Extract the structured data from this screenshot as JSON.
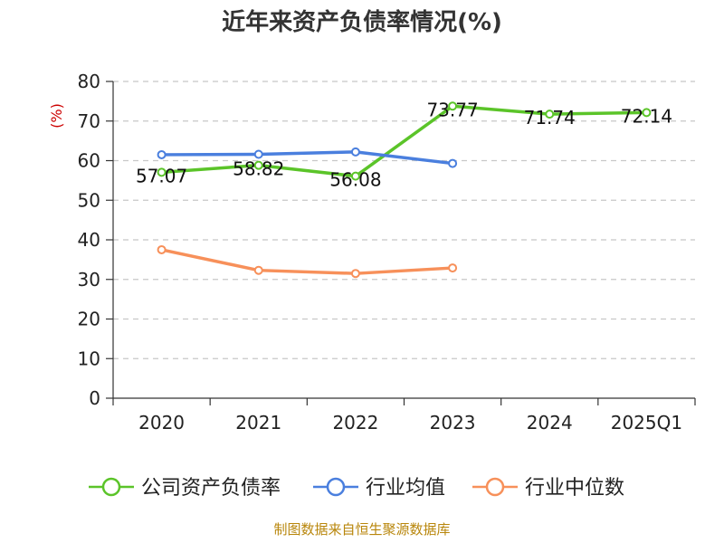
{
  "chart_data": {
    "type": "line",
    "title": "近年来资产负债率情况(%)",
    "ylabel": "(%)",
    "ylim": [
      0,
      80
    ],
    "yticks": [
      0,
      10,
      20,
      30,
      40,
      50,
      60,
      70,
      80
    ],
    "categories": [
      "2020",
      "2021",
      "2022",
      "2023",
      "2024",
      "2025Q1"
    ],
    "grid": true,
    "legend_position": "bottom",
    "series": [
      {
        "name": "公司资产负债率",
        "color": "#5bc429",
        "values": [
          57.07,
          58.82,
          56.08,
          73.77,
          71.74,
          72.14
        ],
        "labels": [
          "57.07",
          "58.82",
          "56.08",
          "73.77",
          "71.74",
          "72.14"
        ]
      },
      {
        "name": "行业均值",
        "color": "#4a7fde",
        "values": [
          61.5,
          61.6,
          62.2,
          59.3,
          null,
          null
        ]
      },
      {
        "name": "行业中位数",
        "color": "#f7905a",
        "values": [
          37.5,
          32.3,
          31.5,
          32.9,
          null,
          null
        ]
      }
    ]
  },
  "source": "制图数据来自恒生聚源数据库"
}
